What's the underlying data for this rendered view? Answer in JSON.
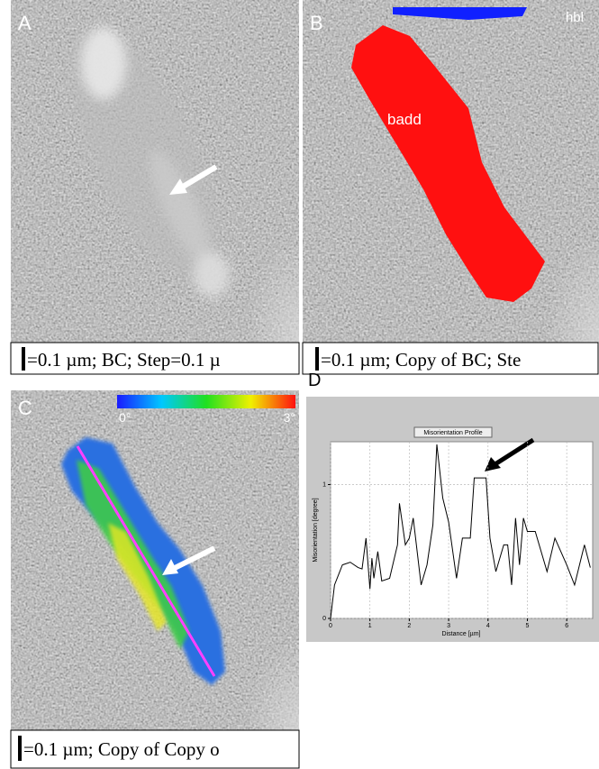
{
  "panels": {
    "a": {
      "label": "A",
      "caption": "=0.1 µm; BC; Step=0.1 µ"
    },
    "b": {
      "label": "B",
      "caption": "=0.1 µm; Copy of BC; Ste",
      "phase_top": "hbl",
      "phase_grain": "badd"
    },
    "c": {
      "label": "C",
      "caption": "=0.1 µm; Copy of Copy o",
      "colorbar_min": "0°",
      "colorbar_max": "3°"
    },
    "d": {
      "label": "D"
    }
  },
  "chart_data": {
    "type": "line",
    "title": "Misorientation Profile",
    "x_label": "Distance [µm]",
    "y_label": "Misorientation [degree]",
    "x": [
      0,
      0.1,
      0.3,
      0.5,
      0.7,
      0.8,
      0.9,
      1.0,
      1.05,
      1.1,
      1.2,
      1.3,
      1.5,
      1.7,
      1.75,
      1.9,
      2.0,
      2.1,
      2.3,
      2.45,
      2.6,
      2.7,
      2.85,
      3.0,
      3.2,
      3.35,
      3.55,
      3.65,
      3.95,
      4.05,
      4.2,
      4.4,
      4.5,
      4.6,
      4.7,
      4.8,
      4.9,
      5.0,
      5.2,
      5.5,
      5.7,
      6.0,
      6.2,
      6.45,
      6.6
    ],
    "values": [
      0,
      0.25,
      0.4,
      0.42,
      0.38,
      0.37,
      0.6,
      0.22,
      0.45,
      0.3,
      0.5,
      0.28,
      0.3,
      0.55,
      0.86,
      0.55,
      0.6,
      0.75,
      0.25,
      0.4,
      0.7,
      1.3,
      0.9,
      0.72,
      0.3,
      0.6,
      0.6,
      1.05,
      1.05,
      0.6,
      0.35,
      0.55,
      0.55,
      0.25,
      0.75,
      0.4,
      0.75,
      0.65,
      0.65,
      0.35,
      0.6,
      0.4,
      0.25,
      0.55,
      0.38
    ],
    "color": "#000000",
    "xlim": [
      0,
      6.66
    ],
    "ylim": [
      0,
      1.32
    ],
    "xticks": [
      0,
      1,
      2,
      3,
      4,
      5,
      6
    ],
    "yticks": [
      0,
      1
    ],
    "grid": true
  }
}
